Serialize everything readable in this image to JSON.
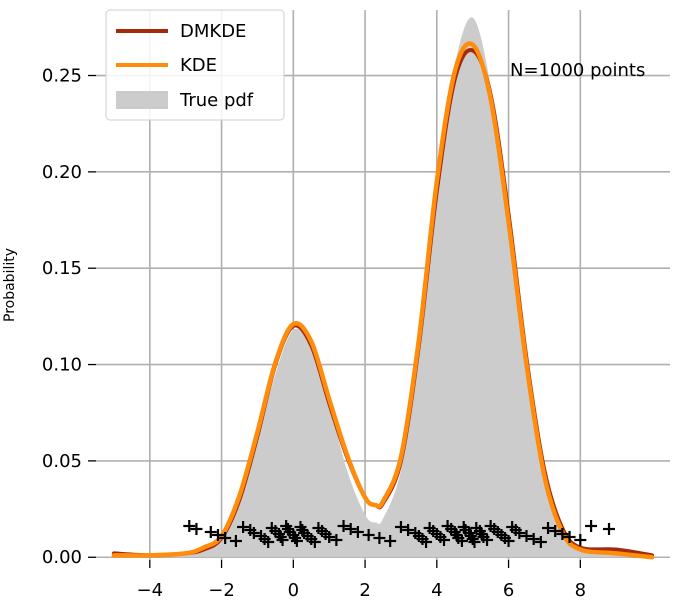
{
  "chart_data": {
    "type": "line",
    "title": "",
    "xlabel": "",
    "ylabel": "Probability",
    "xlim": [
      -5.5,
      10.5
    ],
    "ylim": [
      -0.017,
      0.284
    ],
    "xticks": [
      -4,
      -2,
      0,
      2,
      4,
      6,
      8
    ],
    "xtick_labels": [
      "−4",
      "−2",
      "0",
      "2",
      "4",
      "6",
      "8"
    ],
    "yticks": [
      0.0,
      0.05,
      0.1,
      0.15,
      0.2,
      0.25
    ],
    "ytick_labels": [
      "0.00",
      "0.05",
      "0.10",
      "0.15",
      "0.20",
      "0.25"
    ],
    "grid": true,
    "legend_position": "top-left",
    "annotation": "N=1000 points",
    "colors": {
      "dmkde": "#a52a0a",
      "kde": "#ff8c0a",
      "true_pdf": "#cccccc",
      "samples": "#000000"
    },
    "series": [
      {
        "name": "True pdf",
        "kind": "area",
        "x": [
          -5,
          -4,
          -3,
          -2.5,
          -2,
          -1.5,
          -1,
          -0.5,
          0,
          0.5,
          1,
          1.5,
          2,
          2.3,
          2.5,
          3,
          3.5,
          4,
          4.5,
          5,
          5.5,
          6,
          6.5,
          7,
          7.5,
          8,
          9,
          10
        ],
        "y": [
          0.001,
          0.001,
          0.002,
          0.004,
          0.012,
          0.03,
          0.06,
          0.095,
          0.118,
          0.11,
          0.08,
          0.045,
          0.022,
          0.018,
          0.02,
          0.045,
          0.105,
          0.19,
          0.255,
          0.28,
          0.245,
          0.175,
          0.1,
          0.04,
          0.012,
          0.003,
          0.001,
          0.0
        ]
      },
      {
        "name": "DMKDE",
        "kind": "line",
        "x": [
          -5,
          -4,
          -3,
          -2.5,
          -2,
          -1.5,
          -1,
          -0.5,
          0,
          0.5,
          1,
          1.5,
          2,
          2.3,
          2.5,
          3,
          3.5,
          4,
          4.5,
          5,
          5.5,
          6,
          6.5,
          7,
          7.5,
          8,
          9,
          10
        ],
        "y": [
          0.002,
          0.001,
          0.002,
          0.004,
          0.01,
          0.03,
          0.063,
          0.1,
          0.12,
          0.11,
          0.08,
          0.052,
          0.031,
          0.027,
          0.028,
          0.05,
          0.11,
          0.19,
          0.248,
          0.263,
          0.24,
          0.178,
          0.103,
          0.045,
          0.015,
          0.005,
          0.004,
          0.001
        ]
      },
      {
        "name": "KDE",
        "kind": "line",
        "x": [
          -5,
          -4,
          -3,
          -2.5,
          -2,
          -1.5,
          -1,
          -0.5,
          0,
          0.5,
          1,
          1.5,
          2,
          2.3,
          2.5,
          3,
          3.5,
          4,
          4.5,
          5,
          5.5,
          6,
          6.5,
          7,
          7.5,
          8,
          9,
          10
        ],
        "y": [
          0.001,
          0.001,
          0.002,
          0.005,
          0.011,
          0.032,
          0.065,
          0.101,
          0.121,
          0.112,
          0.082,
          0.053,
          0.031,
          0.027,
          0.029,
          0.052,
          0.113,
          0.195,
          0.252,
          0.266,
          0.238,
          0.174,
          0.1,
          0.042,
          0.013,
          0.004,
          0.002,
          0.0
        ]
      }
    ],
    "samples": [
      -2.9,
      -2.7,
      -2.3,
      -2.1,
      -1.9,
      -1.6,
      -1.4,
      -1.2,
      -1.1,
      -0.9,
      -0.8,
      -0.7,
      -0.6,
      -0.5,
      -0.4,
      -0.35,
      -0.3,
      -0.2,
      -0.15,
      -0.1,
      0.0,
      0.05,
      0.1,
      0.2,
      0.25,
      0.3,
      0.4,
      0.5,
      0.6,
      0.7,
      0.8,
      0.9,
      1.0,
      1.2,
      1.4,
      1.6,
      1.8,
      2.1,
      2.4,
      2.7,
      3.0,
      3.2,
      3.4,
      3.5,
      3.6,
      3.7,
      3.8,
      3.9,
      4.0,
      4.1,
      4.2,
      4.3,
      4.4,
      4.5,
      4.55,
      4.6,
      4.7,
      4.75,
      4.8,
      4.9,
      4.95,
      5.0,
      5.05,
      5.1,
      5.2,
      5.25,
      5.3,
      5.4,
      5.5,
      5.6,
      5.7,
      5.8,
      5.9,
      6.0,
      6.1,
      6.2,
      6.3,
      6.5,
      6.7,
      6.9,
      7.1,
      7.3,
      7.5,
      7.7,
      8.0,
      8.3,
      8.8
    ]
  }
}
